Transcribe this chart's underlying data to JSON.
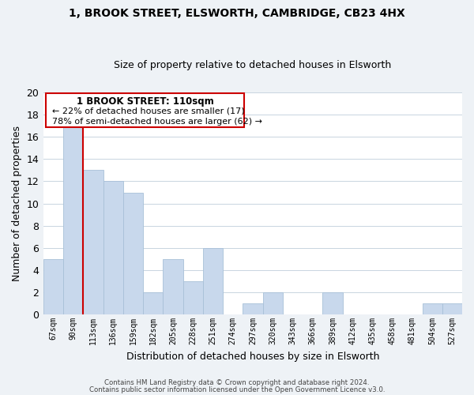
{
  "title": "1, BROOK STREET, ELSWORTH, CAMBRIDGE, CB23 4HX",
  "subtitle": "Size of property relative to detached houses in Elsworth",
  "xlabel": "Distribution of detached houses by size in Elsworth",
  "ylabel": "Number of detached properties",
  "bar_color": "#c8d8ec",
  "bar_edge_color": "#a8c0d8",
  "marker_color": "#cc0000",
  "categories": [
    "67sqm",
    "90sqm",
    "113sqm",
    "136sqm",
    "159sqm",
    "182sqm",
    "205sqm",
    "228sqm",
    "251sqm",
    "274sqm",
    "297sqm",
    "320sqm",
    "343sqm",
    "366sqm",
    "389sqm",
    "412sqm",
    "435sqm",
    "458sqm",
    "481sqm",
    "504sqm",
    "527sqm"
  ],
  "values": [
    5,
    17,
    13,
    12,
    11,
    2,
    5,
    3,
    6,
    0,
    1,
    2,
    0,
    0,
    2,
    0,
    0,
    0,
    0,
    1,
    1
  ],
  "ylim": [
    0,
    20
  ],
  "yticks": [
    0,
    2,
    4,
    6,
    8,
    10,
    12,
    14,
    16,
    18,
    20
  ],
  "annotation_title": "1 BROOK STREET: 110sqm",
  "annotation_line1": "← 22% of detached houses are smaller (17)",
  "annotation_line2": "78% of semi-detached houses are larger (62) →",
  "footer_line1": "Contains HM Land Registry data © Crown copyright and database right 2024.",
  "footer_line2": "Contains public sector information licensed under the Open Government Licence v3.0.",
  "background_color": "#eef2f6",
  "plot_bg_color": "#ffffff",
  "grid_color": "#c8d4e0"
}
